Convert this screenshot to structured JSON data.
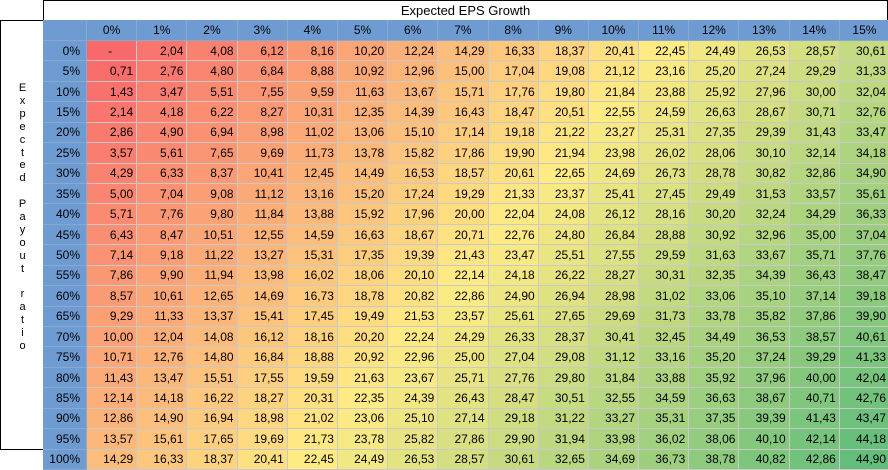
{
  "chart_data": {
    "type": "heatmap",
    "title": "Expected EPS Growth",
    "row_axis_label": "Expected Payout ratio",
    "columns": [
      "0%",
      "1%",
      "2%",
      "3%",
      "4%",
      "5%",
      "6%",
      "7%",
      "8%",
      "9%",
      "10%",
      "11%",
      "12%",
      "13%",
      "14%",
      "15%"
    ],
    "rows": [
      "0%",
      "5%",
      "10%",
      "15%",
      "20%",
      "25%",
      "30%",
      "35%",
      "40%",
      "45%",
      "50%",
      "55%",
      "60%",
      "65%",
      "70%",
      "75%",
      "80%",
      "85%",
      "90%",
      "95%",
      "100%"
    ],
    "values": [
      [
        "-",
        "2,04",
        "4,08",
        "6,12",
        "8,16",
        "10,20",
        "12,24",
        "14,29",
        "16,33",
        "18,37",
        "20,41",
        "22,45",
        "24,49",
        "26,53",
        "28,57",
        "30,61"
      ],
      [
        "0,71",
        "2,76",
        "4,80",
        "6,84",
        "8,88",
        "10,92",
        "12,96",
        "15,00",
        "17,04",
        "19,08",
        "21,12",
        "23,16",
        "25,20",
        "27,24",
        "29,29",
        "31,33"
      ],
      [
        "1,43",
        "3,47",
        "5,51",
        "7,55",
        "9,59",
        "11,63",
        "13,67",
        "15,71",
        "17,76",
        "19,80",
        "21,84",
        "23,88",
        "25,92",
        "27,96",
        "30,00",
        "32,04"
      ],
      [
        "2,14",
        "4,18",
        "6,22",
        "8,27",
        "10,31",
        "12,35",
        "14,39",
        "16,43",
        "18,47",
        "20,51",
        "22,55",
        "24,59",
        "26,63",
        "28,67",
        "30,71",
        "32,76"
      ],
      [
        "2,86",
        "4,90",
        "6,94",
        "8,98",
        "11,02",
        "13,06",
        "15,10",
        "17,14",
        "19,18",
        "21,22",
        "23,27",
        "25,31",
        "27,35",
        "29,39",
        "31,43",
        "33,47"
      ],
      [
        "3,57",
        "5,61",
        "7,65",
        "9,69",
        "11,73",
        "13,78",
        "15,82",
        "17,86",
        "19,90",
        "21,94",
        "23,98",
        "26,02",
        "28,06",
        "30,10",
        "32,14",
        "34,18"
      ],
      [
        "4,29",
        "6,33",
        "8,37",
        "10,41",
        "12,45",
        "14,49",
        "16,53",
        "18,57",
        "20,61",
        "22,65",
        "24,69",
        "26,73",
        "28,78",
        "30,82",
        "32,86",
        "34,90"
      ],
      [
        "5,00",
        "7,04",
        "9,08",
        "11,12",
        "13,16",
        "15,20",
        "17,24",
        "19,29",
        "21,33",
        "23,37",
        "25,41",
        "27,45",
        "29,49",
        "31,53",
        "33,57",
        "35,61"
      ],
      [
        "5,71",
        "7,76",
        "9,80",
        "11,84",
        "13,88",
        "15,92",
        "17,96",
        "20,00",
        "22,04",
        "24,08",
        "26,12",
        "28,16",
        "30,20",
        "32,24",
        "34,29",
        "36,33"
      ],
      [
        "6,43",
        "8,47",
        "10,51",
        "12,55",
        "14,59",
        "16,63",
        "18,67",
        "20,71",
        "22,76",
        "24,80",
        "26,84",
        "28,88",
        "30,92",
        "32,96",
        "35,00",
        "37,04"
      ],
      [
        "7,14",
        "9,18",
        "11,22",
        "13,27",
        "15,31",
        "17,35",
        "19,39",
        "21,43",
        "23,47",
        "25,51",
        "27,55",
        "29,59",
        "31,63",
        "33,67",
        "35,71",
        "37,76"
      ],
      [
        "7,86",
        "9,90",
        "11,94",
        "13,98",
        "16,02",
        "18,06",
        "20,10",
        "22,14",
        "24,18",
        "26,22",
        "28,27",
        "30,31",
        "32,35",
        "34,39",
        "36,43",
        "38,47"
      ],
      [
        "8,57",
        "10,61",
        "12,65",
        "14,69",
        "16,73",
        "18,78",
        "20,82",
        "22,86",
        "24,90",
        "26,94",
        "28,98",
        "31,02",
        "33,06",
        "35,10",
        "37,14",
        "39,18"
      ],
      [
        "9,29",
        "11,33",
        "13,37",
        "15,41",
        "17,45",
        "19,49",
        "21,53",
        "23,57",
        "25,61",
        "27,65",
        "29,69",
        "31,73",
        "33,78",
        "35,82",
        "37,86",
        "39,90"
      ],
      [
        "10,00",
        "12,04",
        "14,08",
        "16,12",
        "18,16",
        "20,20",
        "22,24",
        "24,29",
        "26,33",
        "28,37",
        "30,41",
        "32,45",
        "34,49",
        "36,53",
        "38,57",
        "40,61"
      ],
      [
        "10,71",
        "12,76",
        "14,80",
        "16,84",
        "18,88",
        "20,92",
        "22,96",
        "25,00",
        "27,04",
        "29,08",
        "31,12",
        "33,16",
        "35,20",
        "37,24",
        "39,29",
        "41,33"
      ],
      [
        "11,43",
        "13,47",
        "15,51",
        "17,55",
        "19,59",
        "21,63",
        "23,67",
        "25,71",
        "27,76",
        "29,80",
        "31,84",
        "33,88",
        "35,92",
        "37,96",
        "40,00",
        "42,04"
      ],
      [
        "12,14",
        "14,18",
        "16,22",
        "18,27",
        "20,31",
        "22,35",
        "24,39",
        "26,43",
        "28,47",
        "30,51",
        "32,55",
        "34,59",
        "36,63",
        "38,67",
        "40,71",
        "42,76"
      ],
      [
        "12,86",
        "14,90",
        "16,94",
        "18,98",
        "21,02",
        "23,06",
        "25,10",
        "27,14",
        "29,18",
        "31,22",
        "33,27",
        "35,31",
        "37,35",
        "39,39",
        "41,43",
        "43,47"
      ],
      [
        "13,57",
        "15,61",
        "17,65",
        "19,69",
        "21,73",
        "23,78",
        "25,82",
        "27,86",
        "29,90",
        "31,94",
        "33,98",
        "36,02",
        "38,06",
        "40,10",
        "42,14",
        "44,18"
      ],
      [
        "14,29",
        "16,33",
        "18,37",
        "20,41",
        "22,45",
        "24,49",
        "26,53",
        "28,57",
        "30,61",
        "32,65",
        "34,69",
        "36,73",
        "38,78",
        "40,82",
        "42,86",
        "44,90"
      ]
    ],
    "color_scale": {
      "low": "#f8696b",
      "mid": "#ffeb84",
      "high": "#63be7b"
    },
    "header_color": "#6f9bd3"
  }
}
